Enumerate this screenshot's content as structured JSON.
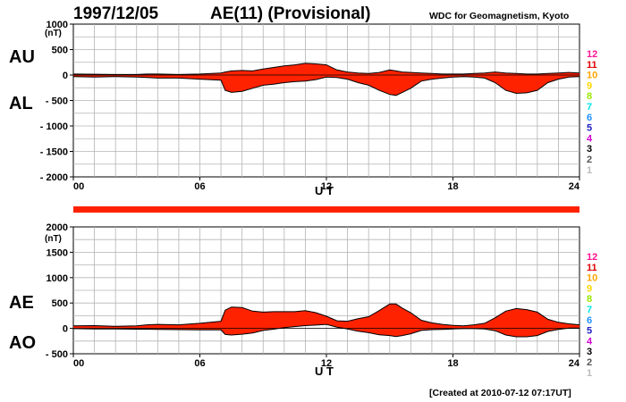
{
  "header": {
    "date": "1997/12/05",
    "title": "AE(11) (Provisional)",
    "institution": "WDC for Geomagnetism, Kyoto"
  },
  "footer": {
    "created": "[Created at 2010-07-12 07:17UT]"
  },
  "colors": {
    "fill": "#ff2200",
    "outline": "#000000",
    "grid": "#b4b4b4",
    "bar": "#ff2200"
  },
  "legend_colors": [
    "#ff1493",
    "#e00000",
    "#ffa500",
    "#ffd700",
    "#99e600",
    "#00e5e5",
    "#1e90ff",
    "#2020c0",
    "#d000d0",
    "#000000",
    "#555555",
    "#bbbbbb"
  ],
  "chart_data": [
    {
      "type": "area",
      "panel": "AU/AL",
      "side_labels": [
        "AU",
        "AL"
      ],
      "unit": "(nT)",
      "xlabel": "U T",
      "x_ticks": [
        "00",
        "06",
        "12",
        "18",
        "24"
      ],
      "xlim": [
        0,
        24
      ],
      "ylim": [
        -2000,
        1000
      ],
      "y_ticks": [
        "1000",
        "500",
        "0",
        "- 500",
        "- 1000",
        "- 1500",
        "- 2000"
      ],
      "y_tick_values": [
        1000,
        500,
        0,
        -500,
        -1000,
        -1500,
        -2000
      ],
      "legend": [
        "12",
        "11",
        "10",
        "9",
        "8",
        "7",
        "6",
        "5",
        "4",
        "3",
        "2",
        "1"
      ],
      "x": [
        0,
        1,
        2,
        3,
        3.5,
        4,
        5,
        6,
        7,
        7.2,
        7.5,
        8,
        8.5,
        9,
        9.5,
        10,
        10.5,
        11,
        11.5,
        12,
        12.5,
        13,
        13.5,
        14,
        14.5,
        15,
        15.3,
        15.6,
        16,
        16.5,
        17,
        17.5,
        18,
        18.5,
        19,
        19.5,
        20,
        20.5,
        21,
        21.5,
        22,
        22.5,
        23,
        23.5,
        24
      ],
      "series": [
        {
          "name": "AU",
          "values": [
            20,
            15,
            10,
            10,
            20,
            20,
            10,
            20,
            40,
            60,
            80,
            90,
            80,
            120,
            150,
            180,
            200,
            230,
            220,
            200,
            100,
            60,
            40,
            30,
            50,
            100,
            80,
            60,
            50,
            40,
            30,
            20,
            20,
            20,
            30,
            40,
            60,
            40,
            30,
            20,
            20,
            30,
            40,
            50,
            40
          ]
        },
        {
          "name": "AL",
          "values": [
            -30,
            -40,
            -30,
            -40,
            -50,
            -60,
            -60,
            -80,
            -100,
            -300,
            -340,
            -320,
            -260,
            -200,
            -180,
            -150,
            -130,
            -120,
            -90,
            -40,
            -50,
            -80,
            -150,
            -200,
            -300,
            -380,
            -400,
            -340,
            -260,
            -120,
            -80,
            -60,
            -40,
            -30,
            -40,
            -60,
            -150,
            -300,
            -360,
            -350,
            -300,
            -150,
            -80,
            -40,
            -30
          ]
        }
      ]
    },
    {
      "type": "area",
      "panel": "AE/AO",
      "side_labels": [
        "AE",
        "AO"
      ],
      "unit": "(nT)",
      "xlabel": "U T",
      "x_ticks": [
        "00",
        "06",
        "12",
        "18",
        "24"
      ],
      "xlim": [
        0,
        24
      ],
      "ylim": [
        -500,
        2000
      ],
      "y_ticks": [
        "2000",
        "1500",
        "1000",
        "500",
        "0",
        "- 500"
      ],
      "y_tick_values": [
        2000,
        1500,
        1000,
        500,
        0,
        -500
      ],
      "legend": [
        "12",
        "11",
        "10",
        "9",
        "8",
        "7",
        "6",
        "5",
        "4",
        "3",
        "2",
        "1"
      ],
      "x": [
        0,
        1,
        2,
        3,
        3.5,
        4,
        5,
        6,
        7,
        7.2,
        7.5,
        8,
        8.5,
        9,
        9.5,
        10,
        10.5,
        11,
        11.5,
        12,
        12.5,
        13,
        13.5,
        14,
        14.5,
        15,
        15.3,
        15.6,
        16,
        16.5,
        17,
        17.5,
        18,
        18.5,
        19,
        19.5,
        20,
        20.5,
        21,
        21.5,
        22,
        22.5,
        23,
        23.5,
        24
      ],
      "series": [
        {
          "name": "AE",
          "values": [
            50,
            55,
            40,
            50,
            70,
            80,
            70,
            100,
            140,
            360,
            420,
            410,
            340,
            320,
            330,
            330,
            330,
            350,
            310,
            240,
            150,
            140,
            190,
            230,
            350,
            480,
            480,
            400,
            310,
            160,
            110,
            80,
            60,
            50,
            70,
            100,
            210,
            340,
            390,
            370,
            320,
            180,
            120,
            90,
            70
          ]
        },
        {
          "name": "AO",
          "values": [
            -5,
            -12,
            -10,
            -15,
            -15,
            -20,
            -25,
            -30,
            -30,
            -120,
            -130,
            -115,
            -90,
            -40,
            -15,
            15,
            35,
            55,
            65,
            80,
            25,
            -10,
            -55,
            -85,
            -125,
            -140,
            -160,
            -140,
            -105,
            -40,
            -25,
            -20,
            -10,
            -5,
            -5,
            -10,
            -45,
            -130,
            -165,
            -165,
            -140,
            -60,
            -20,
            5,
            5
          ]
        }
      ]
    }
  ]
}
